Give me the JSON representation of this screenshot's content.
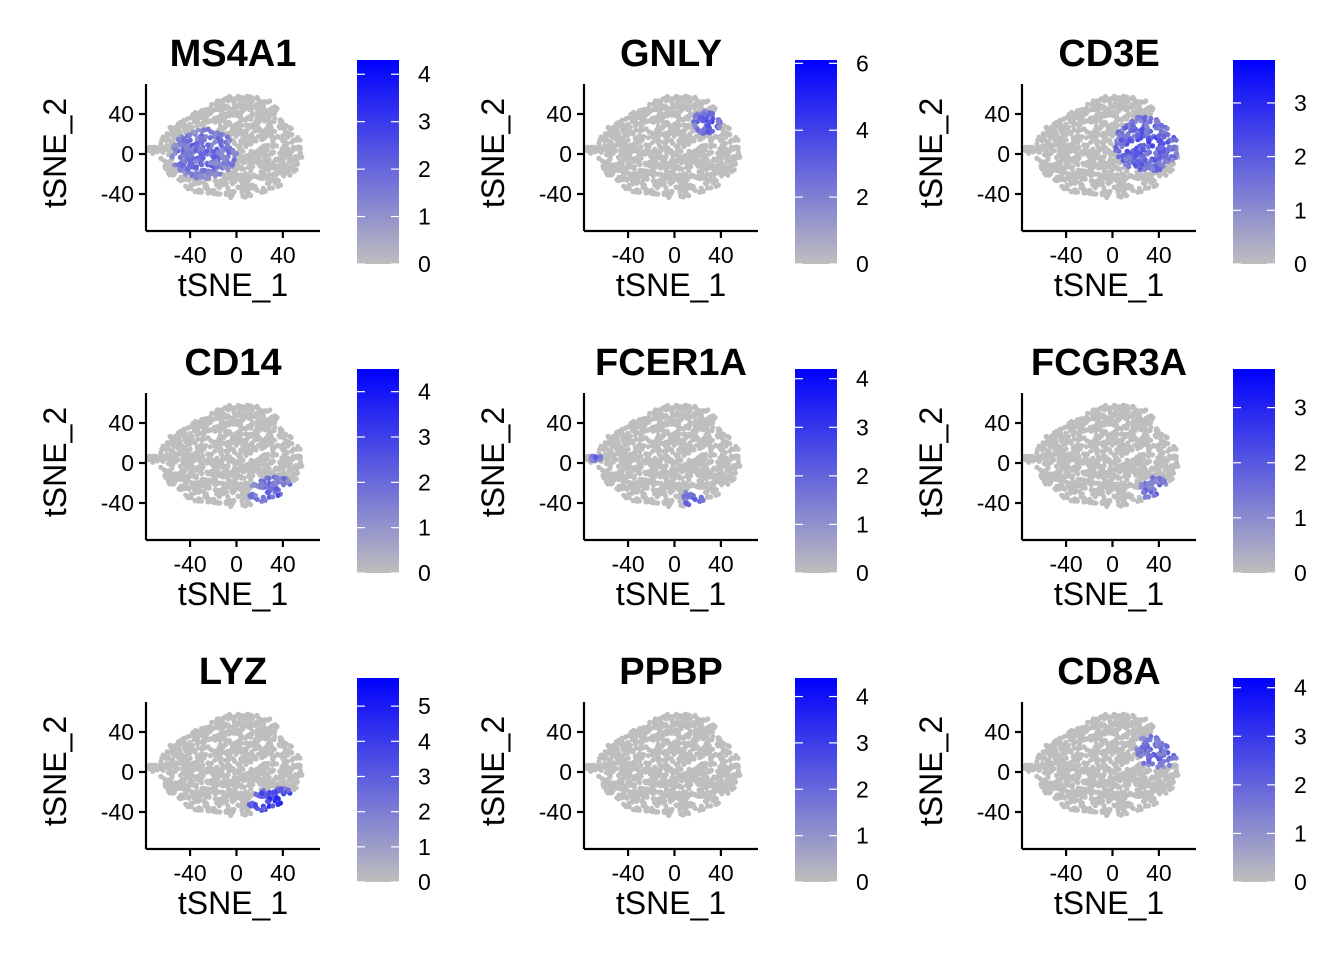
{
  "chart_data": [
    {
      "type": "scatter",
      "title": "MS4A1",
      "xlabel": "tSNE_1",
      "ylabel": "tSNE_2",
      "xticks": [
        -40,
        0,
        40
      ],
      "xticklabels": [
        "-40",
        "0",
        "40"
      ],
      "yticks": [
        -40,
        0,
        40
      ],
      "yticklabels": [
        "-40",
        "0",
        "40"
      ],
      "xlim": [
        -78,
        72
      ],
      "ylim": [
        -58,
        60
      ],
      "colorbar": {
        "min": 0,
        "max": 4.3,
        "ticks": [
          0,
          1,
          2,
          3,
          4
        ],
        "ticklabels": [
          "0",
          "1",
          "2",
          "3",
          "4"
        ]
      },
      "clusters": [
        {
          "x": -28,
          "y": 0,
          "rx": 28,
          "ry": 25,
          "level": 0.5
        }
      ]
    },
    {
      "type": "scatter",
      "title": "GNLY",
      "xlabel": "tSNE_1",
      "ylabel": "tSNE_2",
      "xticks": [
        -40,
        0,
        40
      ],
      "xticklabels": [
        "-40",
        "0",
        "40"
      ],
      "yticks": [
        -40,
        0,
        40
      ],
      "yticklabels": [
        "-40",
        "0",
        "40"
      ],
      "xlim": [
        -78,
        72
      ],
      "ylim": [
        -58,
        60
      ],
      "colorbar": {
        "min": 0,
        "max": 6.1,
        "ticks": [
          0,
          2,
          4,
          6
        ],
        "ticklabels": [
          "0",
          "2",
          "4",
          "6"
        ]
      },
      "clusters": [
        {
          "x": 28,
          "y": 32,
          "rx": 12,
          "ry": 12,
          "level": 0.6
        }
      ]
    },
    {
      "type": "scatter",
      "title": "CD3E",
      "xlabel": "tSNE_1",
      "ylabel": "tSNE_2",
      "xticks": [
        -40,
        0,
        40
      ],
      "xticklabels": [
        "-40",
        "0",
        "40"
      ],
      "yticks": [
        -40,
        0,
        40
      ],
      "yticklabels": [
        "-40",
        "0",
        "40"
      ],
      "xlim": [
        -78,
        72
      ],
      "ylim": [
        -58,
        60
      ],
      "colorbar": {
        "min": 0,
        "max": 3.8,
        "ticks": [
          0,
          1,
          2,
          3
        ],
        "ticklabels": [
          "0",
          "1",
          "2",
          "3"
        ]
      },
      "clusters": [
        {
          "x": 30,
          "y": 10,
          "rx": 28,
          "ry": 28,
          "level": 0.6
        }
      ]
    },
    {
      "type": "scatter",
      "title": "CD14",
      "xlabel": "tSNE_1",
      "ylabel": "tSNE_2",
      "xticks": [
        -40,
        0,
        40
      ],
      "xticklabels": [
        "-40",
        "0",
        "40"
      ],
      "yticks": [
        -40,
        0,
        40
      ],
      "yticklabels": [
        "-40",
        "0",
        "40"
      ],
      "xlim": [
        -78,
        72
      ],
      "ylim": [
        -58,
        60
      ],
      "colorbar": {
        "min": 0,
        "max": 4.5,
        "ticks": [
          0,
          1,
          2,
          3,
          4
        ],
        "ticklabels": [
          "0",
          "1",
          "2",
          "3",
          "4"
        ]
      },
      "clusters": [
        {
          "x": 33,
          "y": -30,
          "rx": 22,
          "ry": 16,
          "level": 0.55
        }
      ]
    },
    {
      "type": "scatter",
      "title": "FCER1A",
      "xlabel": "tSNE_1",
      "ylabel": "tSNE_2",
      "xticks": [
        -40,
        0,
        40
      ],
      "xticklabels": [
        "-40",
        "0",
        "40"
      ],
      "yticks": [
        -40,
        0,
        40
      ],
      "yticklabels": [
        "-40",
        "0",
        "40"
      ],
      "xlim": [
        -78,
        72
      ],
      "ylim": [
        -58,
        60
      ],
      "colorbar": {
        "min": 0,
        "max": 4.2,
        "ticks": [
          0,
          1,
          2,
          3,
          4
        ],
        "ticklabels": [
          "0",
          "1",
          "2",
          "3",
          "4"
        ]
      },
      "clusters": [
        {
          "x": 16,
          "y": -36,
          "rx": 10,
          "ry": 10,
          "level": 0.55
        },
        {
          "x": -67,
          "y": 5,
          "rx": 5,
          "ry": 5,
          "level": 0.5
        }
      ]
    },
    {
      "type": "scatter",
      "title": "FCGR3A",
      "xlabel": "tSNE_1",
      "ylabel": "tSNE_2",
      "xticks": [
        -40,
        0,
        40
      ],
      "xticklabels": [
        "-40",
        "0",
        "40"
      ],
      "yticks": [
        -40,
        0,
        40
      ],
      "yticklabels": [
        "-40",
        "0",
        "40"
      ],
      "xlim": [
        -78,
        72
      ],
      "ylim": [
        -58,
        60
      ],
      "colorbar": {
        "min": 0,
        "max": 3.7,
        "ticks": [
          0,
          1,
          2,
          3
        ],
        "ticklabels": [
          "0",
          "1",
          "2",
          "3"
        ]
      },
      "clusters": [
        {
          "x": 38,
          "y": -28,
          "rx": 15,
          "ry": 14,
          "level": 0.5
        }
      ]
    },
    {
      "type": "scatter",
      "title": "LYZ",
      "xlabel": "tSNE_1",
      "ylabel": "tSNE_2",
      "xticks": [
        -40,
        0,
        40
      ],
      "xticklabels": [
        "-40",
        "0",
        "40"
      ],
      "yticks": [
        -40,
        0,
        40
      ],
      "yticklabels": [
        "-40",
        "0",
        "40"
      ],
      "xlim": [
        -78,
        72
      ],
      "ylim": [
        -58,
        60
      ],
      "colorbar": {
        "min": 0,
        "max": 5.8,
        "ticks": [
          0,
          1,
          2,
          3,
          4,
          5
        ],
        "ticklabels": [
          "0",
          "1",
          "2",
          "3",
          "4",
          "5"
        ]
      },
      "clusters": [
        {
          "x": 35,
          "y": -32,
          "rx": 24,
          "ry": 16,
          "level": 0.75
        }
      ]
    },
    {
      "type": "scatter",
      "title": "PPBP",
      "xlabel": "tSNE_1",
      "ylabel": "tSNE_2",
      "xticks": [
        -40,
        0,
        40
      ],
      "xticklabels": [
        "-40",
        "0",
        "40"
      ],
      "yticks": [
        -40,
        0,
        40
      ],
      "yticklabels": [
        "-40",
        "0",
        "40"
      ],
      "xlim": [
        -78,
        72
      ],
      "ylim": [
        -58,
        60
      ],
      "colorbar": {
        "min": 0,
        "max": 4.4,
        "ticks": [
          0,
          1,
          2,
          3,
          4
        ],
        "ticklabels": [
          "0",
          "1",
          "2",
          "3",
          "4"
        ]
      },
      "clusters": []
    },
    {
      "type": "scatter",
      "title": "CD8A",
      "xlabel": "tSNE_1",
      "ylabel": "tSNE_2",
      "xticks": [
        -40,
        0,
        40
      ],
      "xticklabels": [
        "-40",
        "0",
        "40"
      ],
      "yticks": [
        -40,
        0,
        40
      ],
      "yticklabels": [
        "-40",
        "0",
        "40"
      ],
      "xlim": [
        -78,
        72
      ],
      "ylim": [
        -58,
        60
      ],
      "colorbar": {
        "min": 0,
        "max": 4.2,
        "ticks": [
          0,
          1,
          2,
          3,
          4
        ],
        "ticklabels": [
          "0",
          "1",
          "2",
          "3",
          "4"
        ]
      },
      "clusters": [
        {
          "x": 40,
          "y": 22,
          "rx": 20,
          "ry": 18,
          "level": 0.5
        }
      ]
    }
  ],
  "colors": {
    "low": "#bebebe",
    "high": "#0000ff",
    "axis": "#000000"
  }
}
